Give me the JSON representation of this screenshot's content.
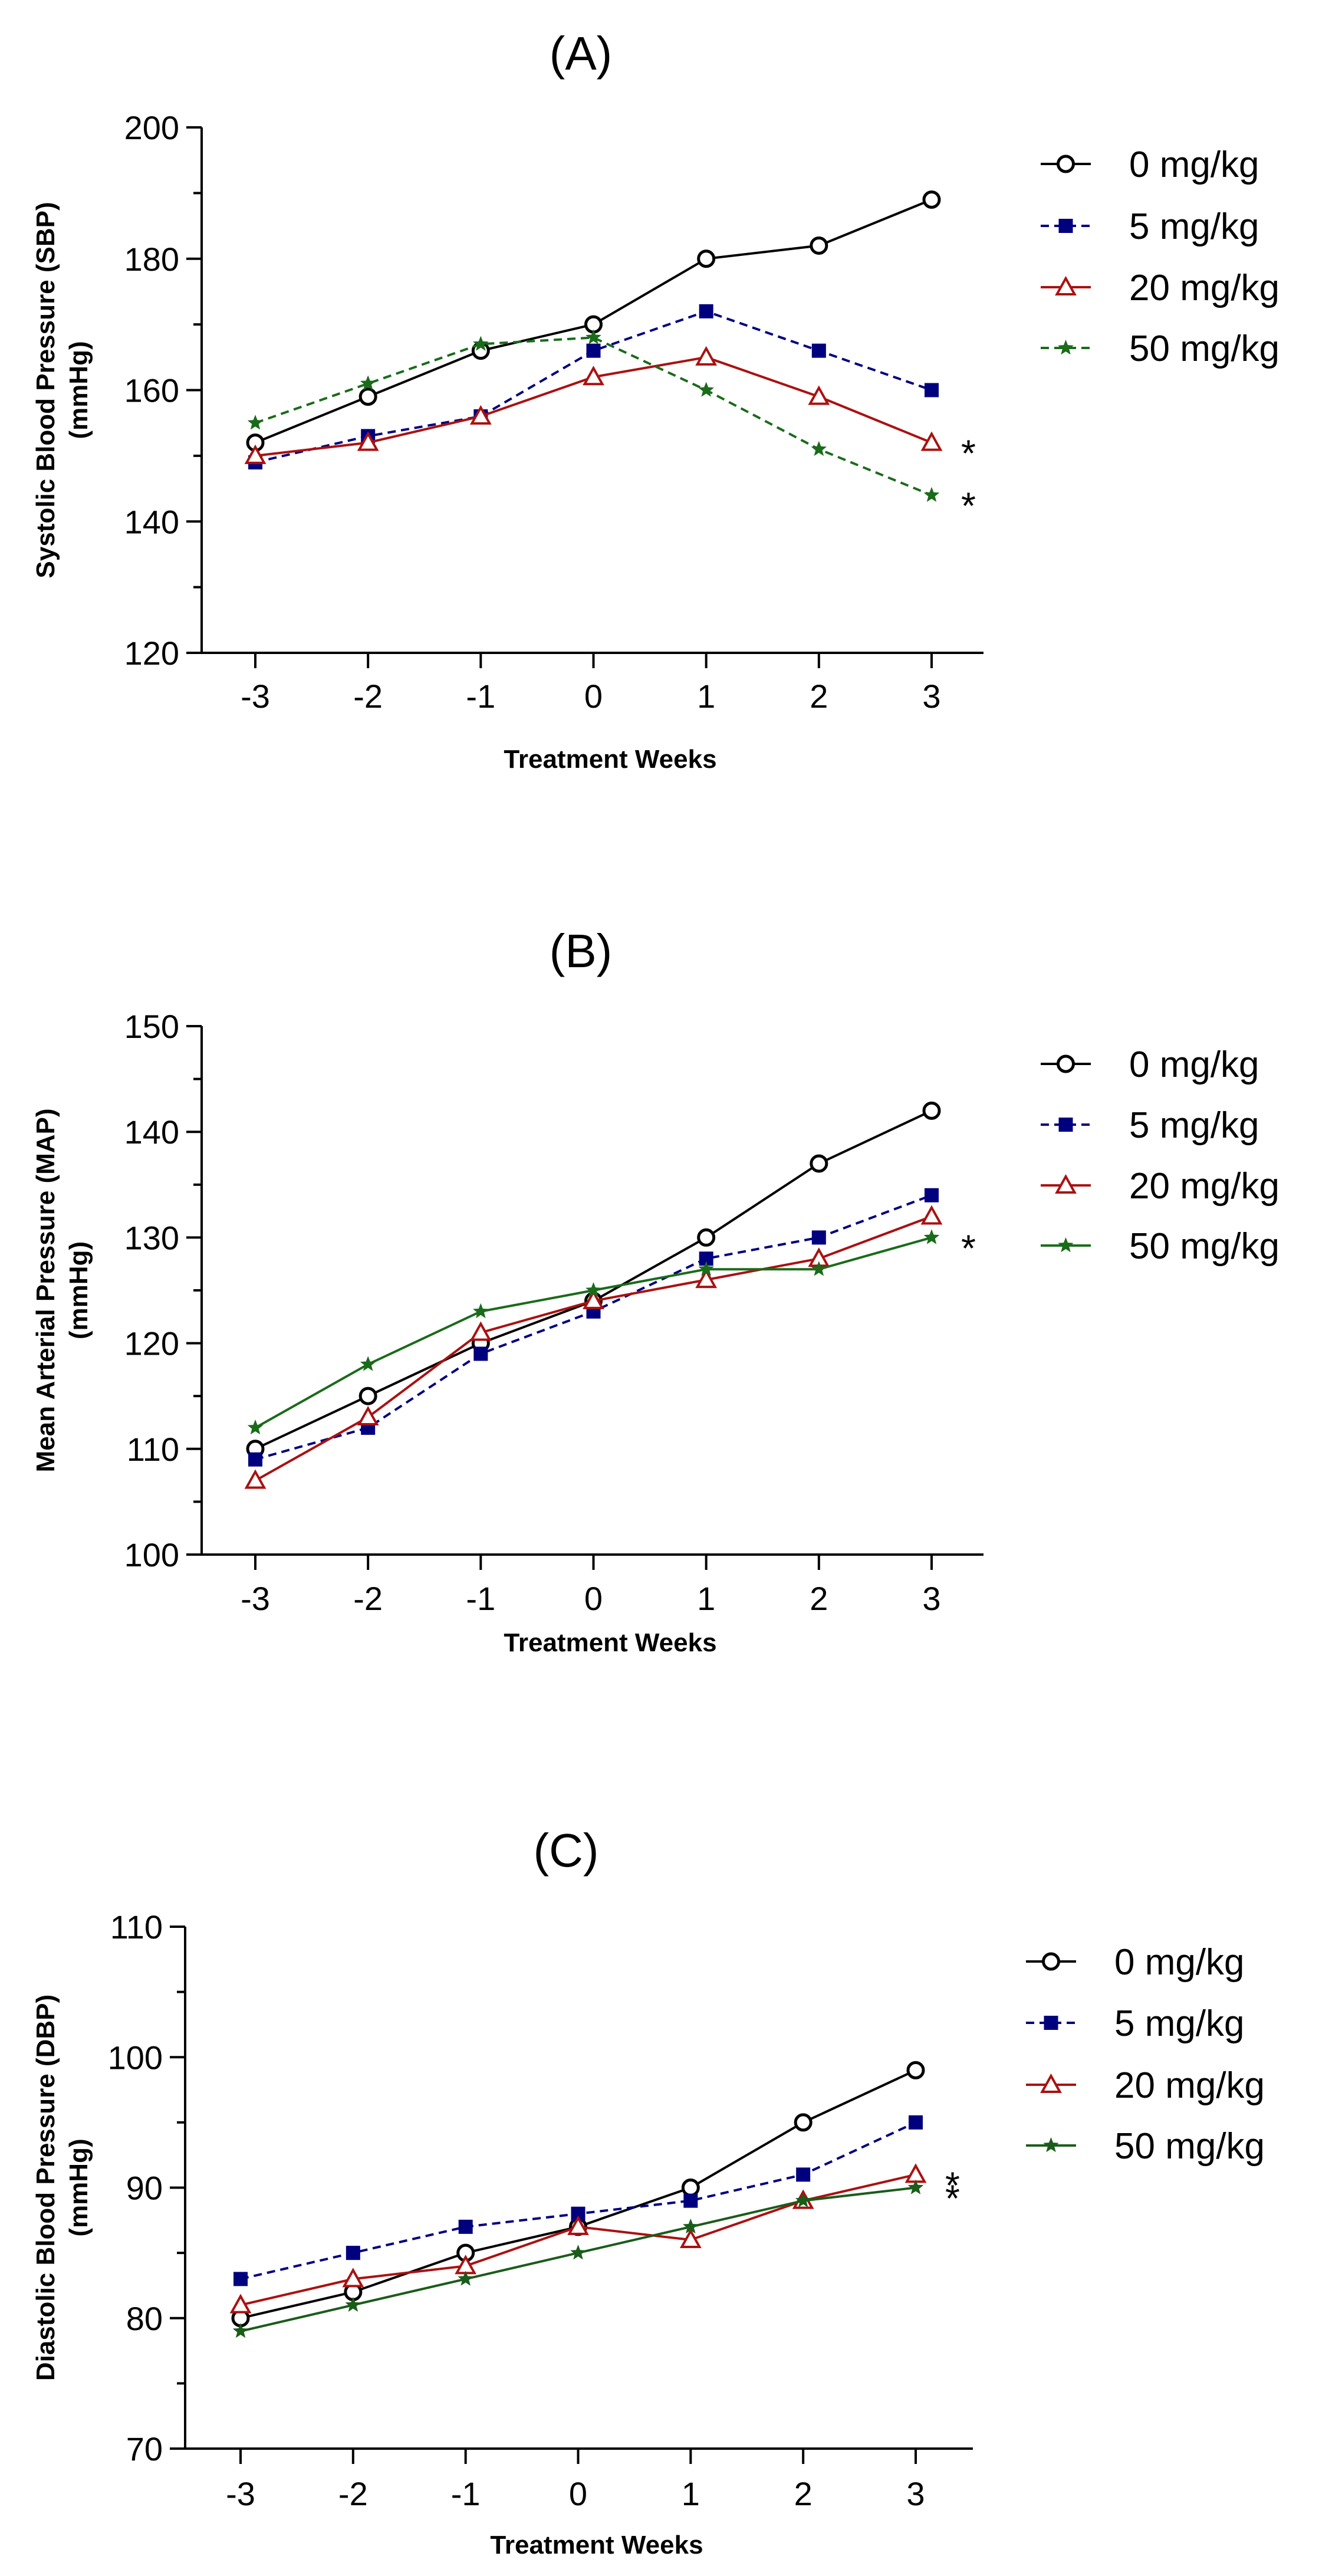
{
  "chart_data": [
    {
      "type": "line",
      "panel_label": "(A)",
      "xlabel": "Treatment Weeks",
      "ylabel_line1": "Systolic Blood Pressure (SBP)",
      "ylabel_line2": "(mmHg)",
      "x": [
        -3,
        -2,
        -1,
        0,
        1,
        2,
        3
      ],
      "x_ticks": [
        "-3",
        "-2",
        "-1",
        "0",
        "1",
        "2",
        "3"
      ],
      "ylim": [
        120,
        200
      ],
      "y_ticks": [
        "120",
        "140",
        "160",
        "180",
        "200"
      ],
      "grid": false,
      "legend_position": "right",
      "series": [
        {
          "name": "0 mg/kg",
          "values": [
            152,
            159,
            166,
            170,
            180,
            182,
            189
          ],
          "color": "#000000",
          "marker": "open-circle",
          "dash": "solid"
        },
        {
          "name": "5 mg/kg",
          "values": [
            149,
            153,
            156,
            166,
            172,
            166,
            160
          ],
          "color": "#00007f",
          "marker": "filled-square",
          "dash": "dashed"
        },
        {
          "name": "20 mg/kg",
          "values": [
            150,
            152,
            156,
            162,
            165,
            159,
            152
          ],
          "color": "#aa1111",
          "marker": "open-triangle",
          "dash": "solid"
        },
        {
          "name": "50 mg/kg",
          "values": [
            155,
            161,
            167,
            168,
            160,
            151,
            144
          ],
          "color": "#1a6b1a",
          "marker": "star",
          "dash": "dashed"
        }
      ],
      "annotations": [
        {
          "text": "*",
          "series": "20 mg/kg",
          "x": 3
        },
        {
          "text": "*",
          "series": "50 mg/kg",
          "x": 3
        }
      ]
    },
    {
      "type": "line",
      "panel_label": "(B)",
      "xlabel": "Treatment Weeks",
      "ylabel_line1": "Mean Arterial Pressure (MAP)",
      "ylabel_line2": "(mmHg)",
      "x": [
        -3,
        -2,
        -1,
        0,
        1,
        2,
        3
      ],
      "x_ticks": [
        "-3",
        "-2",
        "-1",
        "0",
        "1",
        "2",
        "3"
      ],
      "ylim": [
        100,
        150
      ],
      "y_ticks": [
        "100",
        "110",
        "120",
        "130",
        "140",
        "150"
      ],
      "grid": false,
      "legend_position": "right",
      "series": [
        {
          "name": "0 mg/kg",
          "values": [
            110,
            115,
            120,
            124,
            130,
            137,
            142
          ],
          "color": "#000000",
          "marker": "open-circle",
          "dash": "solid"
        },
        {
          "name": "5 mg/kg",
          "values": [
            109,
            112,
            119,
            123,
            128,
            130,
            134
          ],
          "color": "#00007f",
          "marker": "filled-square",
          "dash": "dashed"
        },
        {
          "name": "20 mg/kg",
          "values": [
            107,
            113,
            121,
            124,
            126,
            128,
            132
          ],
          "color": "#aa1111",
          "marker": "open-triangle",
          "dash": "solid"
        },
        {
          "name": "50 mg/kg",
          "values": [
            112,
            118,
            123,
            125,
            127,
            127,
            130
          ],
          "color": "#1a6b1a",
          "marker": "star",
          "dash": "solid"
        }
      ],
      "annotations": [
        {
          "text": "*",
          "series": "50 mg/kg",
          "x": 3
        }
      ]
    },
    {
      "type": "line",
      "panel_label": "(C)",
      "xlabel": "Treatment Weeks",
      "ylabel_line1": "Diastolic Blood Pressure (DBP)",
      "ylabel_line2": "(mmHg)",
      "x": [
        -3,
        -2,
        -1,
        0,
        1,
        2,
        3
      ],
      "x_ticks": [
        "-3",
        "-2",
        "-1",
        "0",
        "1",
        "2",
        "3"
      ],
      "ylim": [
        70,
        110
      ],
      "y_ticks": [
        "70",
        "80",
        "90",
        "100",
        "110"
      ],
      "grid": false,
      "legend_position": "right",
      "series": [
        {
          "name": "0 mg/kg",
          "values": [
            80,
            82,
            85,
            87,
            90,
            95,
            99
          ],
          "color": "#000000",
          "marker": "open-circle",
          "dash": "solid"
        },
        {
          "name": "5 mg/kg",
          "values": [
            83,
            85,
            87,
            88,
            89,
            91,
            95
          ],
          "color": "#00007f",
          "marker": "filled-square",
          "dash": "dashed"
        },
        {
          "name": "20 mg/kg",
          "values": [
            81,
            83,
            84,
            87,
            86,
            89,
            91
          ],
          "color": "#aa1111",
          "marker": "open-triangle",
          "dash": "solid"
        },
        {
          "name": "50 mg/kg",
          "values": [
            79,
            81,
            83,
            85,
            87,
            89,
            90
          ],
          "color": "#1a5c1a",
          "marker": "star",
          "dash": "solid"
        }
      ],
      "annotations": [
        {
          "text": "*",
          "series": "20 mg/kg",
          "x": 3
        },
        {
          "text": "*",
          "series": "50 mg/kg",
          "x": 3
        }
      ]
    }
  ]
}
